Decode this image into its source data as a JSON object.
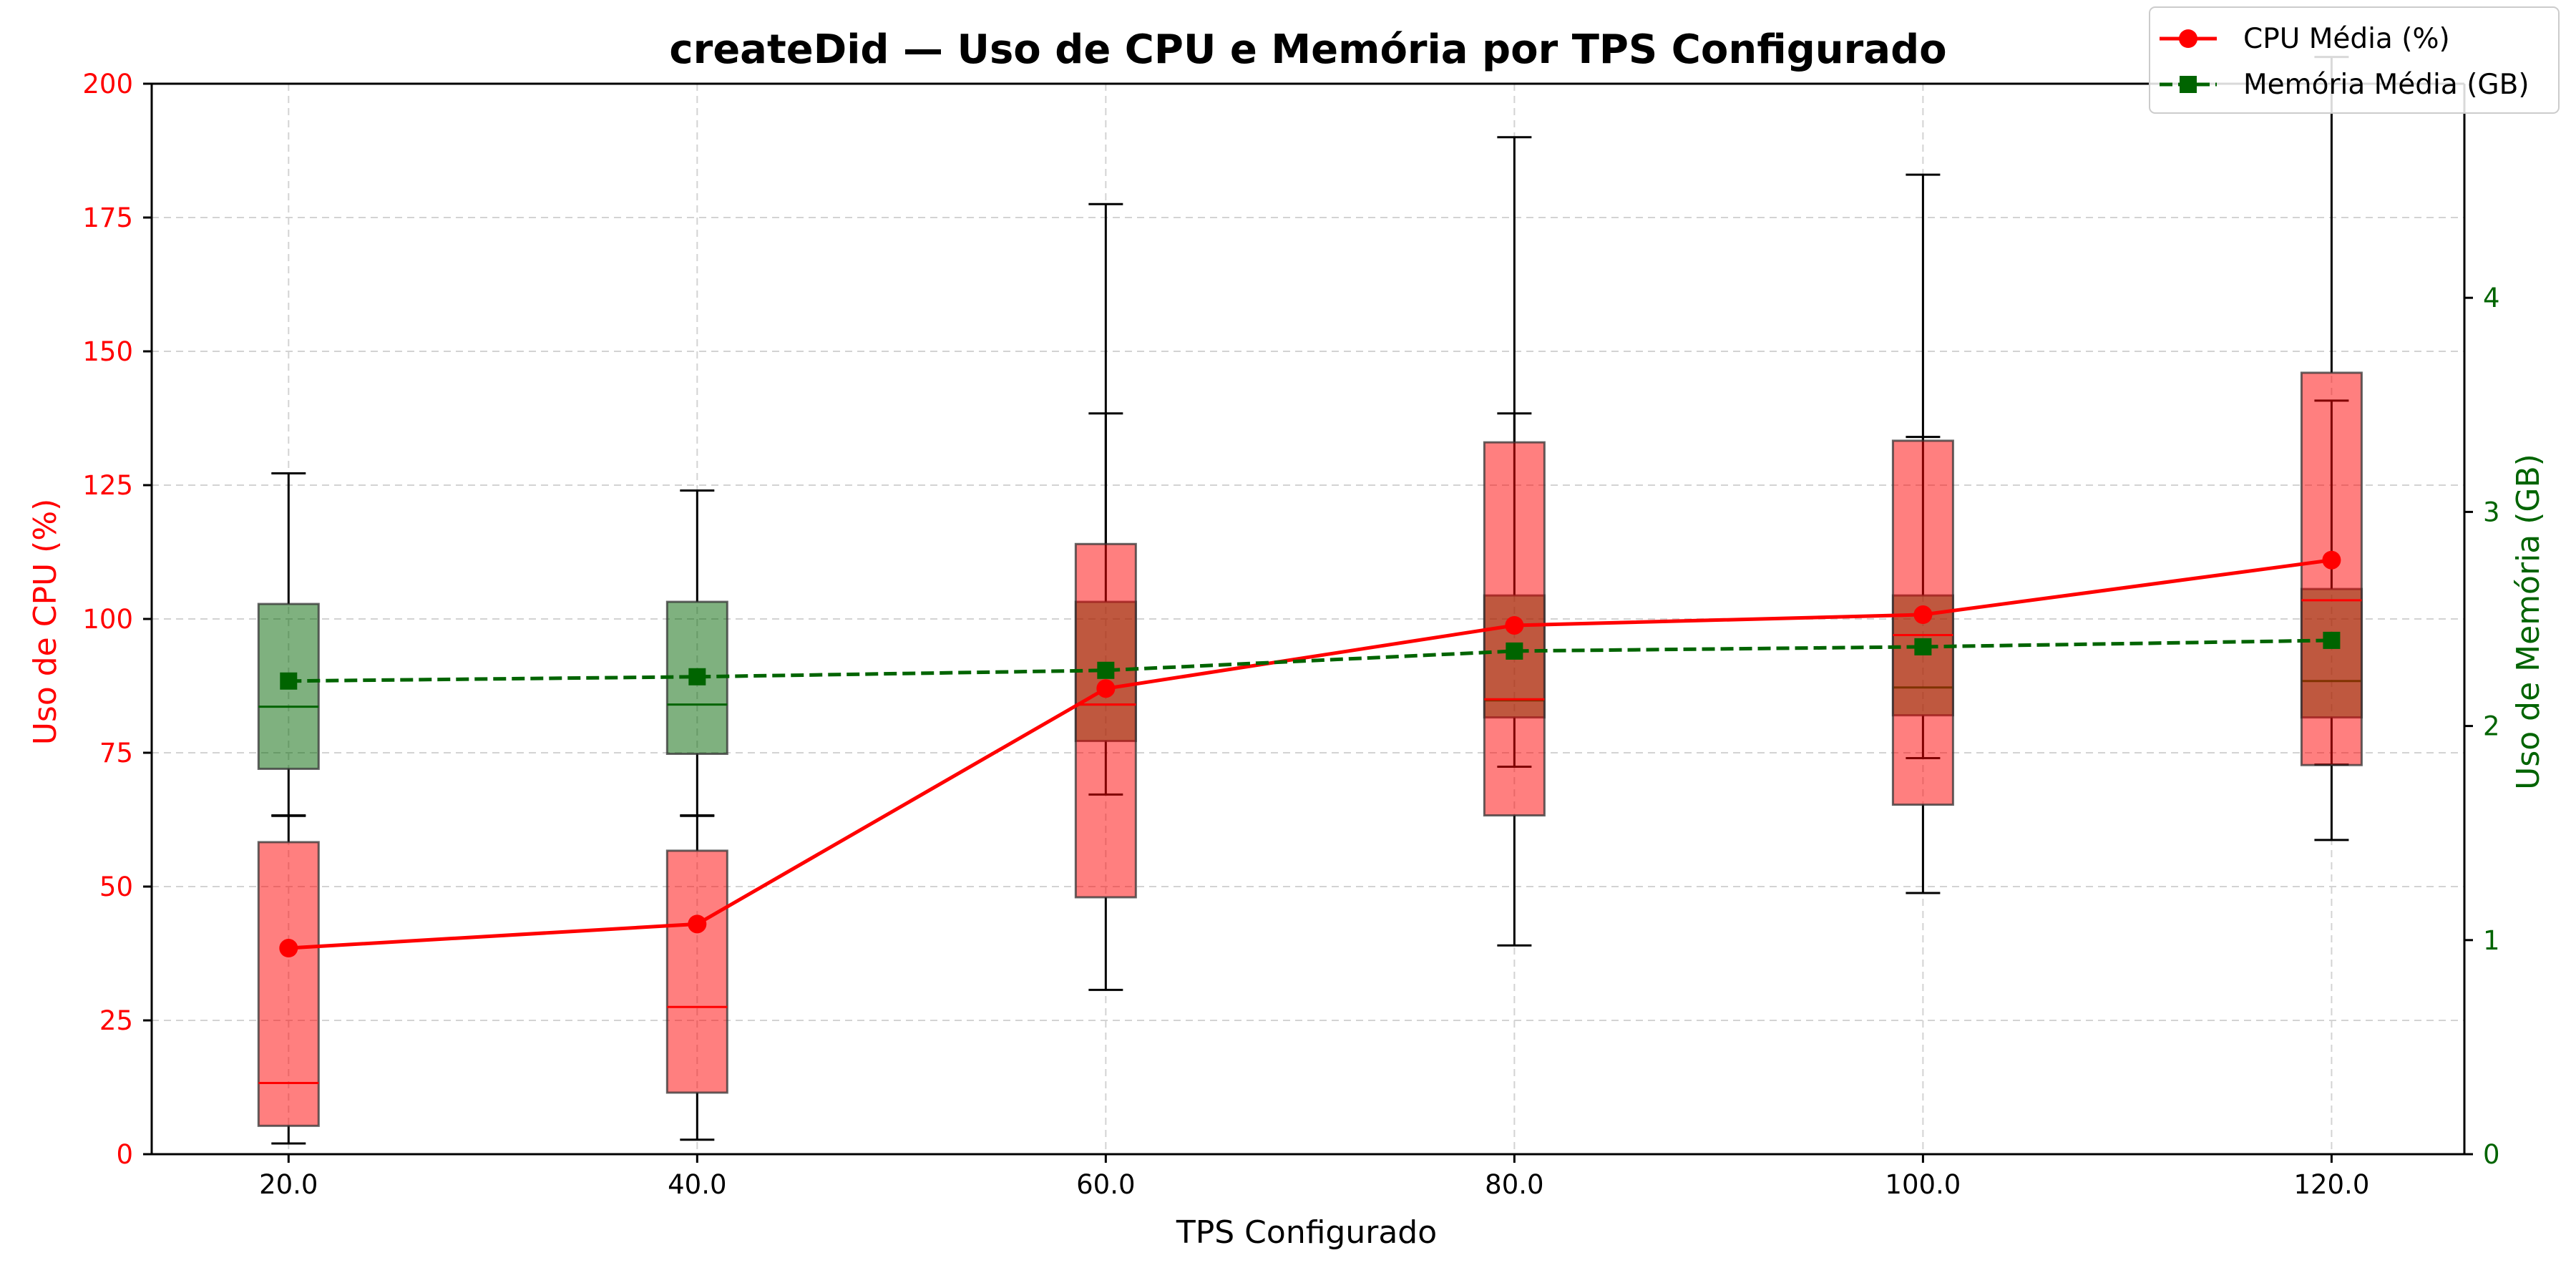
{
  "chart_data": {
    "type": "box",
    "title": "createDid — Uso de CPU e Memória por TPS Configurado",
    "xlabel": "TPS Configurado",
    "ylabel_left": "Uso de CPU (%)",
    "ylabel_right": "Uso de Memória (GB)",
    "x": [
      20.0,
      40.0,
      60.0,
      80.0,
      100.0,
      120.0
    ],
    "x_tick_labels": [
      "20.0",
      "40.0",
      "60.0",
      "80.0",
      "100.0",
      "120.0"
    ],
    "xlim": [
      13.3,
      126.5
    ],
    "ylim_left": [
      0,
      200
    ],
    "ylim_right": [
      0,
      5.0
    ],
    "y_ticks_left": [
      0,
      25,
      50,
      75,
      100,
      125,
      150,
      175,
      200
    ],
    "y_ticks_right": [
      0,
      1,
      2,
      3,
      4
    ],
    "grid": true,
    "legend_position": "top-right",
    "colors": {
      "cpu": "#ff0000",
      "cpu_box": "#ff8080",
      "memory": "#006400",
      "memory_box": "#8fbc8f",
      "whisker": "#000000",
      "grid": "#d3d3d3"
    },
    "series": [
      {
        "name": "CPU Média (%)",
        "axis": "left",
        "marker": "circle",
        "line_style": "solid",
        "mean": [
          38.5,
          43.0,
          87.0,
          98.8,
          100.8,
          111.0
        ],
        "boxes": [
          {
            "min": 2.0,
            "q1": 5.3,
            "median": 13.3,
            "q3": 58.3,
            "max": 63.3
          },
          {
            "min": 2.7,
            "q1": 11.5,
            "median": 27.5,
            "q3": 56.7,
            "max": 63.3
          },
          {
            "min": 30.7,
            "q1": 48.0,
            "median": 84.0,
            "q3": 114.0,
            "max": 177.5
          },
          {
            "min": 39.0,
            "q1": 63.3,
            "median": 85.0,
            "q3": 133.0,
            "max": 190.0
          },
          {
            "min": 48.8,
            "q1": 65.3,
            "median": 97.0,
            "q3": 133.3,
            "max": 183.0
          },
          {
            "min": 58.7,
            "q1": 72.7,
            "median": 103.5,
            "q3": 146.0,
            "max": 205.0
          }
        ]
      },
      {
        "name": "Memória Média (GB)",
        "axis": "right",
        "marker": "square",
        "line_style": "dashed",
        "mean": [
          2.21,
          2.23,
          2.26,
          2.35,
          2.37,
          2.4
        ],
        "boxes": [
          {
            "min": 1.58,
            "q1": 1.8,
            "median": 2.09,
            "q3": 2.57,
            "max": 3.18
          },
          {
            "min": 1.58,
            "q1": 1.87,
            "median": 2.1,
            "q3": 2.58,
            "max": 3.1
          },
          {
            "min": 1.68,
            "q1": 1.93,
            "median": 2.1,
            "q3": 2.58,
            "max": 3.46
          },
          {
            "min": 1.81,
            "q1": 2.04,
            "median": 2.12,
            "q3": 2.61,
            "max": 3.46
          },
          {
            "min": 1.85,
            "q1": 2.05,
            "median": 2.18,
            "q3": 2.61,
            "max": 3.35
          },
          {
            "min": 1.82,
            "q1": 2.04,
            "median": 2.21,
            "q3": 2.64,
            "max": 3.52
          }
        ]
      }
    ]
  }
}
